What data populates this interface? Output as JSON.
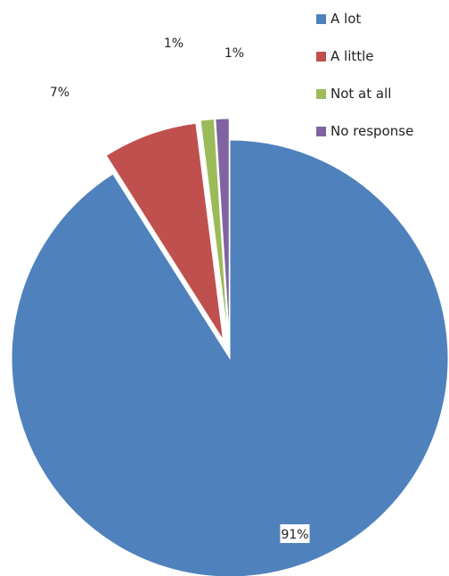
{
  "chart_data": {
    "type": "pie",
    "exploded": true,
    "legend_position": "top-right",
    "slices": [
      {
        "name": "A lot",
        "value": 91,
        "label": "91%",
        "color": "#4F81BD"
      },
      {
        "name": "A little",
        "value": 7,
        "label": "7%",
        "color": "#C0504D"
      },
      {
        "name": "Not at all",
        "value": 1,
        "label": "1%",
        "color": "#9BBB59"
      },
      {
        "name": "No response",
        "value": 1,
        "label": "1%",
        "color": "#8064A2"
      }
    ]
  }
}
